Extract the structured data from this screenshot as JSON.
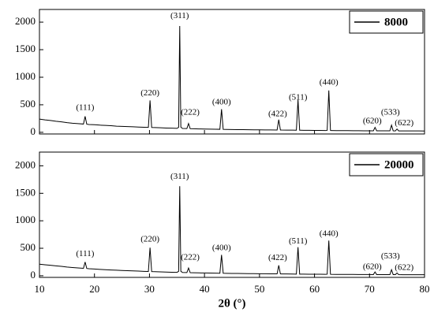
{
  "chart_data": [
    {
      "type": "line",
      "legend": "upper right",
      "show_xtick_labels": false,
      "x": [
        10,
        11,
        12,
        13,
        14,
        15,
        16,
        17,
        18,
        18.3,
        18.6,
        19,
        20,
        21,
        22,
        23,
        24,
        25,
        26,
        27,
        28,
        29,
        29.8,
        30.1,
        30.4,
        31,
        32,
        33,
        34,
        35,
        35.3,
        35.5,
        35.7,
        36,
        36.8,
        37.1,
        37.4,
        38,
        39,
        40,
        41,
        42,
        42.8,
        43.1,
        43.4,
        44,
        45,
        46,
        47,
        48,
        49,
        50,
        51,
        52,
        53.2,
        53.5,
        53.8,
        54,
        55,
        56,
        56.7,
        57,
        57.3,
        58,
        59,
        60,
        61,
        62,
        62.3,
        62.6,
        62.9,
        63,
        64,
        65,
        66,
        67,
        68,
        69,
        70,
        70.7,
        71,
        71.3,
        72,
        73,
        73.7,
        74,
        74.3,
        74.7,
        75,
        75.3,
        76,
        77,
        78,
        79,
        80
      ],
      "series": [
        {
          "name": "8000",
          "color": "#000000",
          "values": [
            240,
            225,
            215,
            200,
            190,
            175,
            165,
            158,
            150,
            290,
            148,
            142,
            138,
            130,
            125,
            120,
            112,
            108,
            104,
            100,
            96,
            92,
            90,
            580,
            88,
            86,
            82,
            78,
            75,
            72,
            90,
            1930,
            95,
            70,
            68,
            160,
            66,
            64,
            62,
            60,
            58,
            56,
            55,
            420,
            54,
            52,
            50,
            49,
            48,
            47,
            46,
            45,
            44,
            43,
            42,
            230,
            42,
            41,
            40,
            39,
            38,
            590,
            38,
            37,
            36,
            35,
            34,
            33,
            35,
            760,
            35,
            32,
            31,
            30,
            30,
            29,
            29,
            28,
            28,
            28,
            90,
            28,
            27,
            27,
            27,
            130,
            27,
            26,
            60,
            26,
            26,
            25,
            25,
            25,
            24
          ]
        }
      ],
      "xlim": [
        10,
        80
      ],
      "xticks": [
        10,
        20,
        30,
        40,
        50,
        60,
        70,
        80
      ],
      "ylim": [
        -30,
        2230
      ],
      "yticks": [
        0,
        500,
        1000,
        1500,
        2000
      ],
      "annotations": [
        {
          "label": "(111)",
          "x": 18.3,
          "y": 440
        },
        {
          "label": "(220)",
          "x": 30.1,
          "y": 710
        },
        {
          "label": "(311)",
          "x": 35.5,
          "y": 2110
        },
        {
          "label": "(222)",
          "x": 37.4,
          "y": 360
        },
        {
          "label": "(400)",
          "x": 43.1,
          "y": 540
        },
        {
          "label": "(422)",
          "x": 53.3,
          "y": 330
        },
        {
          "label": "(511)",
          "x": 57.0,
          "y": 630
        },
        {
          "label": "(440)",
          "x": 62.6,
          "y": 900
        },
        {
          "label": "(620)",
          "x": 70.5,
          "y": 200
        },
        {
          "label": "(533)",
          "x": 73.8,
          "y": 360
        },
        {
          "label": "(622)",
          "x": 76.3,
          "y": 160
        }
      ]
    },
    {
      "type": "line",
      "legend": "upper right",
      "xlabel": "2θ (°)",
      "x": [
        10,
        11,
        12,
        13,
        14,
        15,
        16,
        17,
        18,
        18.3,
        18.6,
        19,
        20,
        21,
        22,
        23,
        24,
        25,
        26,
        27,
        28,
        29,
        29.8,
        30.1,
        30.4,
        31,
        32,
        33,
        34,
        35,
        35.3,
        35.5,
        35.7,
        36,
        36.8,
        37.1,
        37.4,
        38,
        39,
        40,
        41,
        42,
        42.8,
        43.1,
        43.4,
        44,
        45,
        46,
        47,
        48,
        49,
        50,
        51,
        52,
        53.2,
        53.5,
        53.8,
        54,
        55,
        56,
        56.7,
        57,
        57.3,
        58,
        59,
        60,
        61,
        62,
        62.3,
        62.6,
        62.9,
        63,
        64,
        65,
        66,
        67,
        68,
        69,
        70,
        70.7,
        71,
        71.3,
        72,
        73,
        73.7,
        74,
        74.3,
        74.7,
        75,
        75.3,
        76,
        77,
        78,
        79,
        80
      ],
      "series": [
        {
          "name": "20000",
          "color": "#000000",
          "values": [
            210,
            200,
            190,
            180,
            170,
            158,
            150,
            142,
            135,
            250,
            132,
            128,
            122,
            116,
            110,
            105,
            100,
            96,
            92,
            88,
            84,
            80,
            78,
            510,
            76,
            74,
            70,
            67,
            64,
            62,
            80,
            1630,
            82,
            60,
            58,
            140,
            56,
            54,
            52,
            50,
            48,
            47,
            46,
            380,
            45,
            44,
            42,
            41,
            40,
            39,
            38,
            37,
            36,
            35,
            34,
            190,
            34,
            33,
            32,
            31,
            30,
            520,
            30,
            29,
            28,
            28,
            27,
            26,
            28,
            640,
            28,
            25,
            24,
            24,
            23,
            23,
            22,
            22,
            22,
            21,
            70,
            21,
            21,
            20,
            20,
            110,
            20,
            20,
            50,
            20,
            19,
            19,
            18,
            18,
            18
          ]
        }
      ],
      "xlim": [
        10,
        80
      ],
      "xticks": [
        10,
        20,
        30,
        40,
        50,
        60,
        70,
        80
      ],
      "ylim": [
        -30,
        2250
      ],
      "yticks": [
        0,
        500,
        1000,
        1500,
        2000
      ],
      "annotations": [
        {
          "label": "(111)",
          "x": 18.3,
          "y": 390
        },
        {
          "label": "(220)",
          "x": 30.1,
          "y": 660
        },
        {
          "label": "(311)",
          "x": 35.5,
          "y": 1800
        },
        {
          "label": "(222)",
          "x": 37.4,
          "y": 330
        },
        {
          "label": "(400)",
          "x": 43.1,
          "y": 500
        },
        {
          "label": "(422)",
          "x": 53.3,
          "y": 320
        },
        {
          "label": "(511)",
          "x": 57.0,
          "y": 620
        },
        {
          "label": "(440)",
          "x": 62.6,
          "y": 760
        },
        {
          "label": "(620)",
          "x": 70.5,
          "y": 160
        },
        {
          "label": "(533)",
          "x": 73.8,
          "y": 350
        },
        {
          "label": "(622)",
          "x": 76.3,
          "y": 140
        }
      ]
    }
  ]
}
